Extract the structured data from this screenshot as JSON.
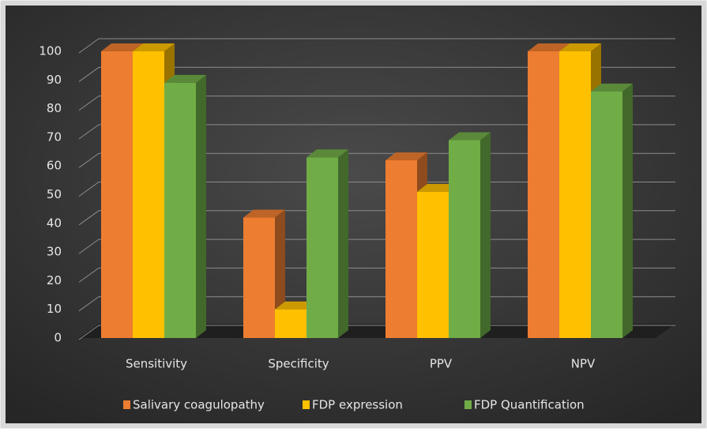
{
  "chart_data": {
    "type": "bar",
    "categories": [
      "Sensitivity",
      "Specificity",
      "PPV",
      "NPV"
    ],
    "series": [
      {
        "name": "Salivary coagulopathy",
        "color": "#ed7d31",
        "values": [
          100,
          42,
          62,
          100
        ]
      },
      {
        "name": "FDP expression",
        "color": "#ffc000",
        "values": [
          100,
          10,
          51,
          100
        ]
      },
      {
        "name": "FDP Quantification",
        "color": "#70ad47",
        "values": [
          89,
          63,
          69,
          86
        ]
      }
    ],
    "ylim": [
      0,
      100
    ],
    "yticks": [
      0,
      10,
      20,
      30,
      40,
      50,
      60,
      70,
      80,
      90,
      100
    ],
    "grid": true,
    "legend": "bottom"
  }
}
